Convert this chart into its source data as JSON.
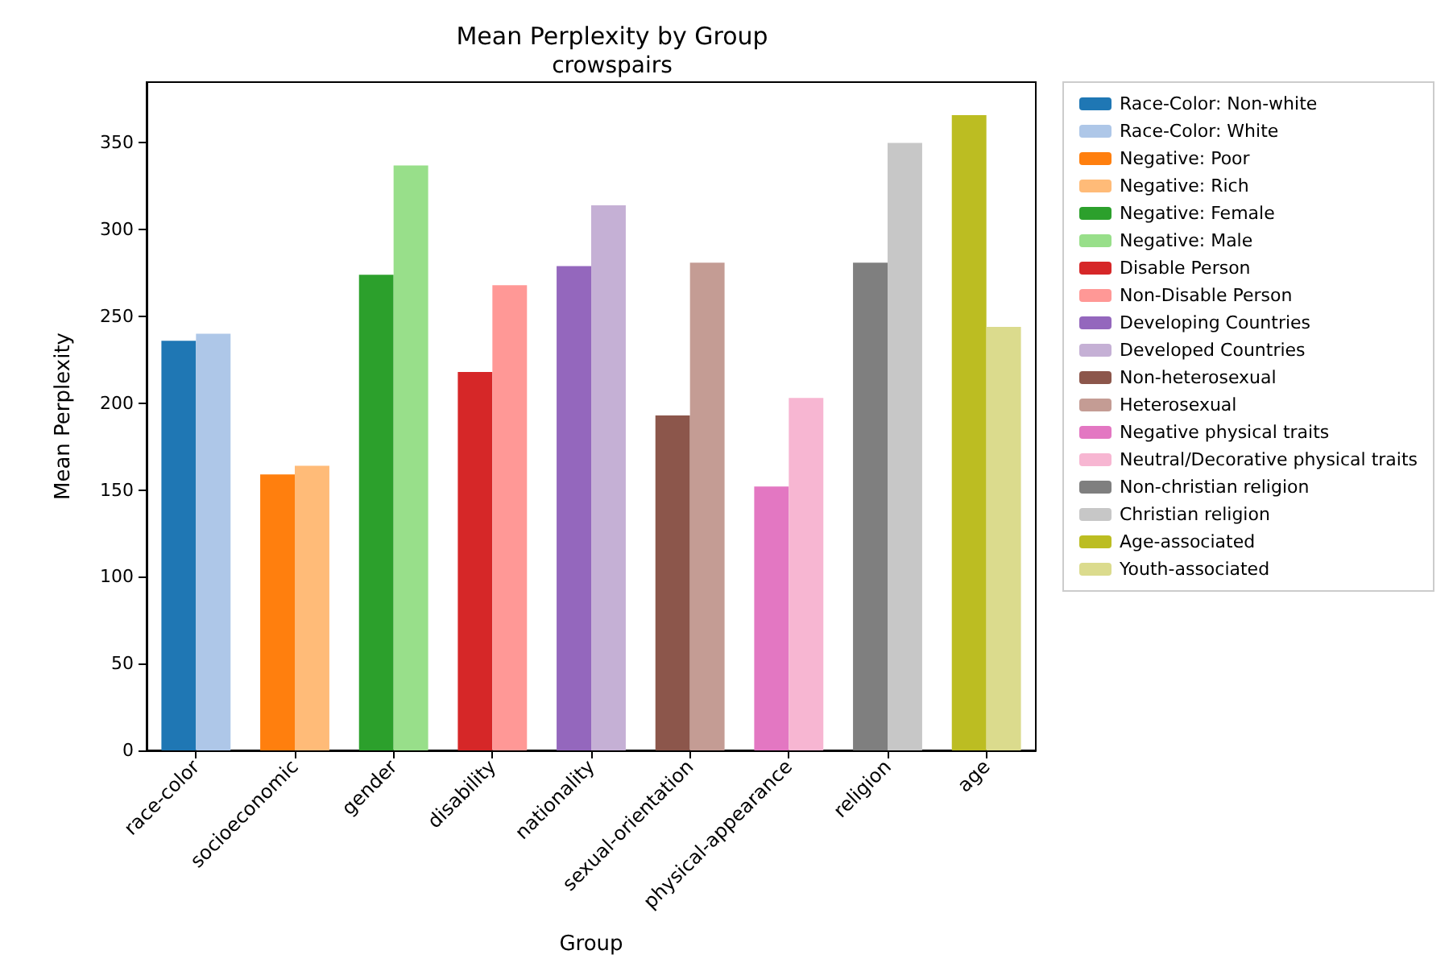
{
  "chart_data": {
    "type": "bar",
    "title": "Mean Perplexity by Group",
    "subtitle": "crowspairs",
    "xlabel": "Group",
    "ylabel": "Mean Perplexity",
    "categories": [
      "race-color",
      "socioeconomic",
      "gender",
      "disability",
      "nationality",
      "sexual-orientation",
      "physical-appearance",
      "religion",
      "age"
    ],
    "series": [
      {
        "name": "Race-Color: Non-white",
        "color": "#1f77b4",
        "values": [
          236,
          null,
          null,
          null,
          null,
          null,
          null,
          null,
          null
        ]
      },
      {
        "name": "Race-Color: White",
        "color": "#aec7e8",
        "values": [
          240,
          null,
          null,
          null,
          null,
          null,
          null,
          null,
          null
        ]
      },
      {
        "name": "Negative: Poor",
        "color": "#ff7f0e",
        "values": [
          null,
          159,
          null,
          null,
          null,
          null,
          null,
          null,
          null
        ]
      },
      {
        "name": "Negative: Rich",
        "color": "#ffbb78",
        "values": [
          null,
          164,
          null,
          null,
          null,
          null,
          null,
          null,
          null
        ]
      },
      {
        "name": "Negative: Female",
        "color": "#2ca02c",
        "values": [
          null,
          null,
          274,
          null,
          null,
          null,
          null,
          null,
          null
        ]
      },
      {
        "name": "Negative: Male",
        "color": "#98df8a",
        "values": [
          null,
          null,
          337,
          null,
          null,
          null,
          null,
          null,
          null
        ]
      },
      {
        "name": "Disable Person",
        "color": "#d62728",
        "values": [
          null,
          null,
          null,
          218,
          null,
          null,
          null,
          null,
          null
        ]
      },
      {
        "name": "Non-Disable Person",
        "color": "#ff9896",
        "values": [
          null,
          null,
          null,
          268,
          null,
          null,
          null,
          null,
          null
        ]
      },
      {
        "name": "Developing Countries",
        "color": "#9467bd",
        "values": [
          null,
          null,
          null,
          null,
          279,
          null,
          null,
          null,
          null
        ]
      },
      {
        "name": "Developed Countries",
        "color": "#c5b0d5",
        "values": [
          null,
          null,
          null,
          null,
          314,
          null,
          null,
          null,
          null
        ]
      },
      {
        "name": "Non-heterosexual",
        "color": "#8c564b",
        "values": [
          null,
          null,
          null,
          null,
          null,
          193,
          null,
          null,
          null
        ]
      },
      {
        "name": "Heterosexual",
        "color": "#c49c94",
        "values": [
          null,
          null,
          null,
          null,
          null,
          281,
          null,
          null,
          null
        ]
      },
      {
        "name": "Negative physical traits",
        "color": "#e377c2",
        "values": [
          null,
          null,
          null,
          null,
          null,
          null,
          152,
          null,
          null
        ]
      },
      {
        "name": "Neutral/Decorative physical traits",
        "color": "#f7b6d2",
        "values": [
          null,
          null,
          null,
          null,
          null,
          null,
          203,
          null,
          null
        ]
      },
      {
        "name": "Non-christian religion",
        "color": "#7f7f7f",
        "values": [
          null,
          null,
          null,
          null,
          null,
          null,
          null,
          281,
          null
        ]
      },
      {
        "name": "Christian religion",
        "color": "#c7c7c7",
        "values": [
          null,
          null,
          null,
          null,
          null,
          null,
          null,
          350,
          null
        ]
      },
      {
        "name": "Age-associated",
        "color": "#bcbd22",
        "values": [
          null,
          null,
          null,
          null,
          null,
          null,
          null,
          null,
          366
        ]
      },
      {
        "name": "Youth-associated",
        "color": "#dbdb8d",
        "values": [
          null,
          null,
          null,
          null,
          null,
          null,
          null,
          null,
          244
        ]
      }
    ],
    "ylim": [
      0,
      385
    ],
    "yticks": [
      0,
      50,
      100,
      150,
      200,
      250,
      300,
      350
    ],
    "grid": false,
    "legend": "top right"
  }
}
